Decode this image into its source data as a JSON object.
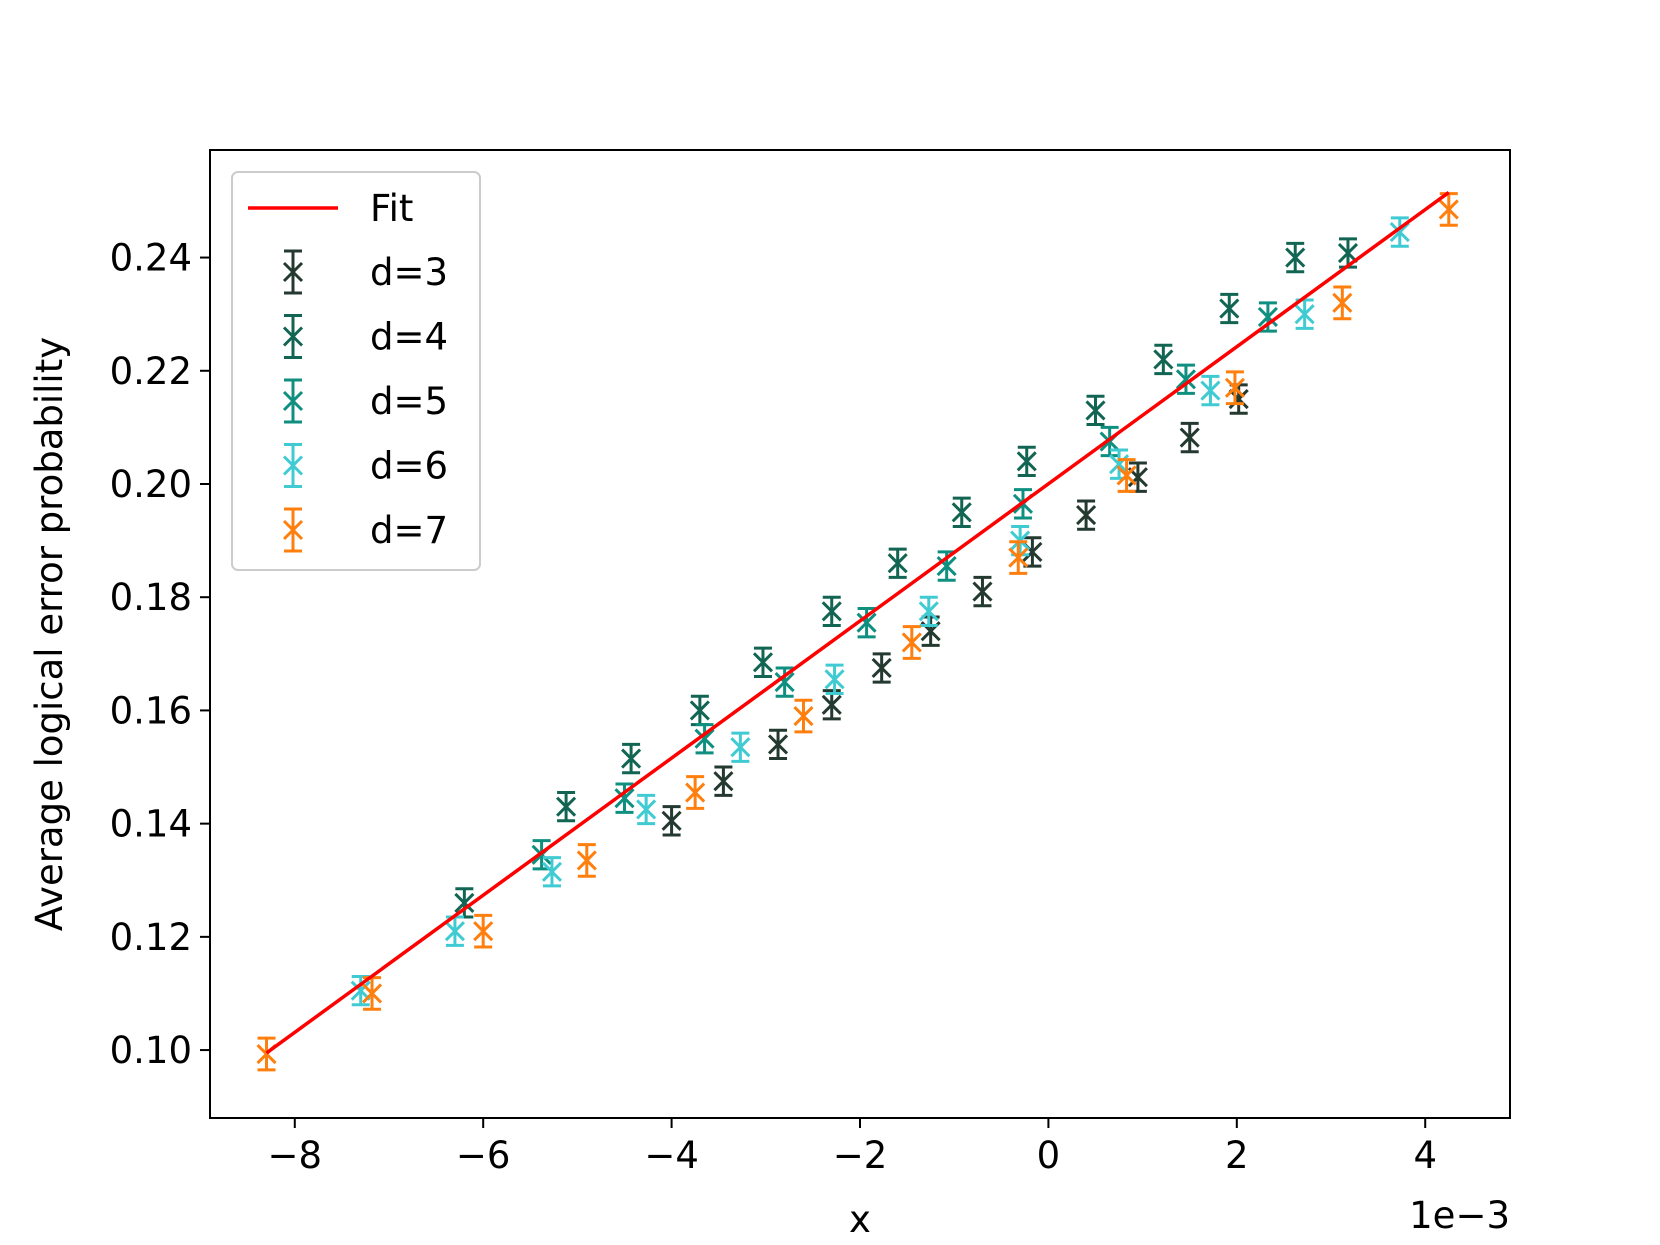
{
  "chart_data": {
    "type": "scatter",
    "title": "",
    "xlabel": "x",
    "ylabel": "Average logical error probability",
    "x_offset_text": "1e−3",
    "xlim": [
      -8.9,
      4.9
    ],
    "ylim": [
      0.088,
      0.259
    ],
    "x_ticks": [
      -8,
      -6,
      -4,
      -2,
      0,
      2,
      4
    ],
    "x_tick_labels": [
      "−8",
      "−6",
      "−4",
      "−2",
      "0",
      "2",
      "4"
    ],
    "y_ticks": [
      0.1,
      0.12,
      0.14,
      0.16,
      0.18,
      0.2,
      0.22,
      0.24
    ],
    "y_tick_labels": [
      "0.10",
      "0.12",
      "0.14",
      "0.16",
      "0.18",
      "0.20",
      "0.22",
      "0.24"
    ],
    "grid": false,
    "legend_position": "upper-left",
    "fit": {
      "name": "Fit",
      "color": "#ff0000",
      "x": [
        -8.3,
        4.25
      ],
      "y": [
        0.0995,
        0.2515
      ]
    },
    "series": [
      {
        "name": "d=3",
        "color": "#243a30",
        "marker": "x",
        "error": 0.0025,
        "x": [
          -4.0,
          -3.45,
          -2.87,
          -2.3,
          -1.77,
          -1.25,
          -0.7,
          -0.17,
          0.4,
          0.95,
          1.5,
          2.02
        ],
        "y": [
          0.1405,
          0.1475,
          0.154,
          0.161,
          0.1675,
          0.174,
          0.181,
          0.188,
          0.1945,
          0.2012,
          0.2082,
          0.215
        ]
      },
      {
        "name": "d=4",
        "color": "#116552",
        "marker": "x",
        "error": 0.0025,
        "x": [
          -6.2,
          -5.12,
          -4.43,
          -3.7,
          -3.03,
          -2.3,
          -1.6,
          -0.92,
          -0.23,
          0.5,
          1.22,
          1.92,
          2.62,
          3.18
        ],
        "y": [
          0.126,
          0.143,
          0.1515,
          0.16,
          0.1685,
          0.1775,
          0.186,
          0.195,
          0.204,
          0.213,
          0.222,
          0.231,
          0.24,
          0.2408
        ]
      },
      {
        "name": "d=5",
        "color": "#0f8f80",
        "marker": "x",
        "error": 0.0025,
        "x": [
          -5.38,
          -4.5,
          -3.65,
          -2.8,
          -1.93,
          -1.08,
          -0.27,
          0.65,
          1.46,
          2.33
        ],
        "y": [
          0.1345,
          0.1445,
          0.155,
          0.165,
          0.1755,
          0.1855,
          0.1965,
          0.2075,
          0.2185,
          0.2295
        ]
      },
      {
        "name": "d=6",
        "color": "#40cbd3",
        "marker": "x",
        "error": 0.0025,
        "x": [
          -7.3,
          -6.3,
          -5.27,
          -4.27,
          -3.27,
          -2.27,
          -1.27,
          -0.3,
          0.75,
          1.72,
          2.72,
          3.73
        ],
        "y": [
          0.1105,
          0.121,
          0.1315,
          0.1425,
          0.1535,
          0.1655,
          0.1775,
          0.19,
          0.2035,
          0.2165,
          0.23,
          0.2445
        ]
      },
      {
        "name": "d=7",
        "color": "#ff7f0e",
        "marker": "x",
        "error": 0.0028,
        "x": [
          -8.3,
          -7.18,
          -6.0,
          -4.9,
          -3.75,
          -2.6,
          -1.45,
          -0.32,
          0.83,
          1.98,
          3.12,
          4.25
        ],
        "y": [
          0.0993,
          0.11,
          0.121,
          0.1335,
          0.1455,
          0.159,
          0.172,
          0.187,
          0.2015,
          0.217,
          0.232,
          0.2485
        ]
      }
    ]
  }
}
